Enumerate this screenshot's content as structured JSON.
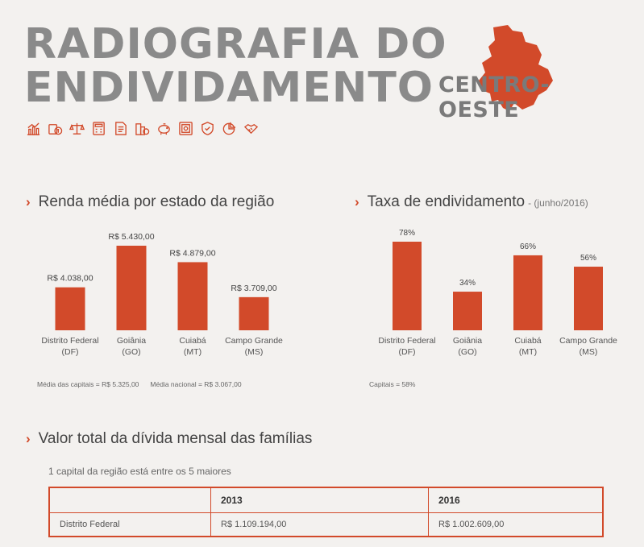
{
  "title": {
    "line1": "RADIOGRAFIA DO",
    "line2": "ENDIVIDAMENTO"
  },
  "region": {
    "label": "CENTRO-OESTE",
    "color": "#d24a2a"
  },
  "icons": [
    "chart-icon",
    "money-icon",
    "scale-icon",
    "calculator-icon",
    "document-icon",
    "buildings-icon",
    "piggy-bank-icon",
    "safe-icon",
    "shield-icon",
    "pie-chart-icon",
    "handshake-icon"
  ],
  "accent": "#d24a2a",
  "sections": {
    "income": {
      "title": "Renda média por estado da região"
    },
    "debt_rate": {
      "title": "Taxa de endividamento",
      "subtitle": "- (junho/2016)"
    },
    "total_debt": {
      "title": "Valor total da dívida mensal das famílias",
      "subtitle": "1 capital da região está entre os 5 maiores"
    }
  },
  "notes": {
    "income_capitals": "Média das capitais = R$ 5.325,00",
    "income_national": "Média nacional = R$ 3.067,00",
    "debt_capitals": "Capitais = 58%"
  },
  "chart_data": [
    {
      "type": "bar",
      "categories": [
        "Distrito Federal (DF)",
        "Goiânia (GO)",
        "Cuiabá (MT)",
        "Campo Grande (MS)"
      ],
      "category_lines": [
        [
          "Distrito Federal",
          "(DF)"
        ],
        [
          "Goiânia",
          "(GO)"
        ],
        [
          "Cuiabá",
          "(MT)"
        ],
        [
          "Campo Grande",
          "(MS)"
        ]
      ],
      "values": [
        4038,
        5430,
        4879,
        3709
      ],
      "data_labels": [
        "R$ 4.038,00",
        "R$ 5.430,00",
        "R$ 4.879,00",
        "R$ 3.709,00"
      ],
      "ylim": [
        2600,
        5430
      ],
      "grid": false,
      "color": "#d24a2a"
    },
    {
      "type": "bar",
      "categories": [
        "Distrito Federal (DF)",
        "Goiânia (GO)",
        "Cuiabá (MT)",
        "Campo Grande (MS)"
      ],
      "category_lines": [
        [
          "Distrito Federal",
          "(DF)"
        ],
        [
          "Goiânia",
          "(GO)"
        ],
        [
          "Cuiabá",
          "(MT)"
        ],
        [
          "Campo Grande",
          "(MS)"
        ]
      ],
      "values": [
        78,
        34,
        66,
        56
      ],
      "data_labels": [
        "78%",
        "34%",
        "66%",
        "56%"
      ],
      "ylim": [
        0,
        78
      ],
      "grid": false,
      "color": "#d24a2a"
    }
  ],
  "table": {
    "headers": [
      "",
      "2013",
      "2016"
    ],
    "rows": [
      [
        "Distrito Federal",
        "R$ 1.109.194,00",
        "R$ 1.002.609,00"
      ]
    ]
  }
}
